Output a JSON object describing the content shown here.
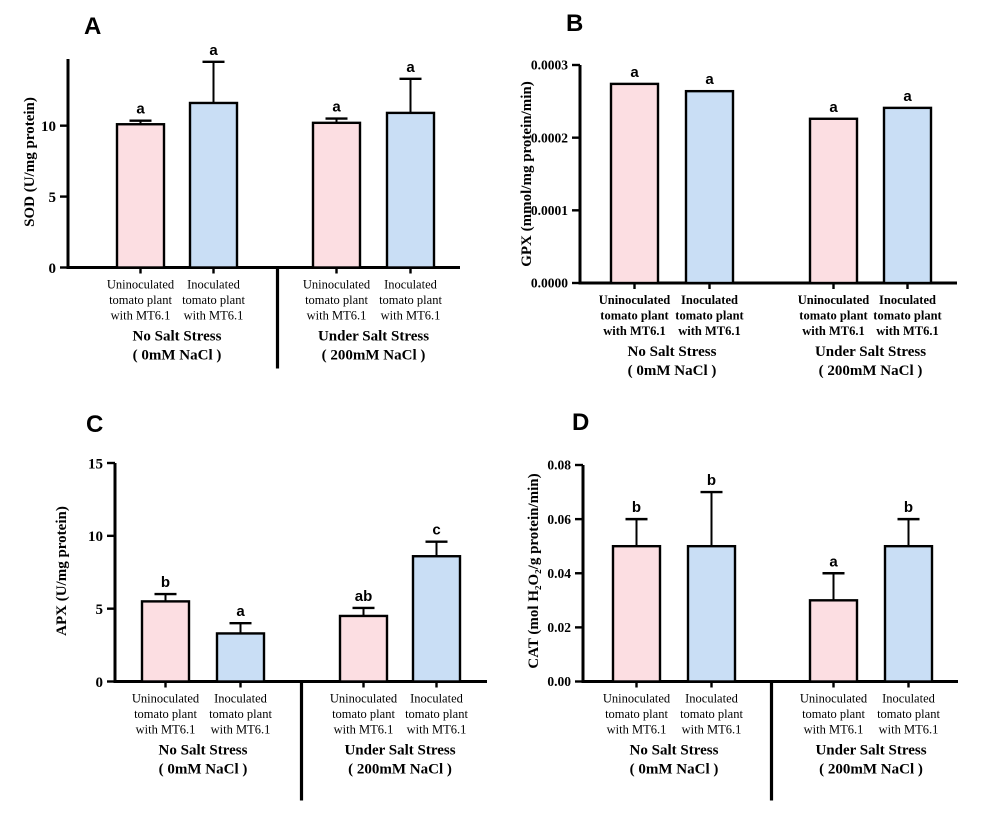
{
  "figure": {
    "background": "#ffffff",
    "axis_color": "#000000",
    "bar_fill_colors": {
      "uninoculated": "#fcdee2",
      "inoculated": "#c9def5"
    },
    "category_label_lines": [
      [
        "Uninoculated",
        "tomato plant",
        "with MT6.1"
      ],
      [
        "Inoculated",
        "tomato plant",
        "with MT6.1"
      ]
    ],
    "group_label_lines": [
      [
        "No Salt Stress",
        "( 0mM NaCl )"
      ],
      [
        "Under Salt Stress",
        "( 200mM NaCl )"
      ]
    ]
  },
  "chart_data": [
    {
      "panel_label": "A",
      "type": "bar",
      "title": "",
      "xlabel": "",
      "ylabel": "SOD (U/mg protein)",
      "ylim": [
        0,
        14.7
      ],
      "ytick_values": [
        0,
        5,
        10
      ],
      "ytick_labels": [
        "0",
        "5",
        "10"
      ],
      "categories": [
        "Uninoculated tomato plant with MT6.1",
        "Inoculated tomato plant with MT6.1",
        "Uninoculated tomato plant with MT6.1",
        "Inoculated tomato plant with MT6.1"
      ],
      "groups": [
        "No Salt Stress ( 0mM NaCl )",
        "Under Salt Stress ( 200mM NaCl )"
      ],
      "values": [
        10.1,
        11.6,
        10.2,
        10.9
      ],
      "errors_up": [
        0.25,
        2.9,
        0.3,
        2.4
      ],
      "significance_letters": [
        "a",
        "a",
        "a",
        "a"
      ],
      "group_divider": true,
      "bold_category_labels": false,
      "grid": false,
      "legend": "none"
    },
    {
      "panel_label": "B",
      "type": "bar",
      "title": "",
      "xlabel": "",
      "ylabel": "GPX (mmol/mg protein/min)",
      "ylim": [
        0,
        0.0003
      ],
      "ytick_values": [
        0,
        0.0001,
        0.0002,
        0.0003
      ],
      "ytick_labels": [
        "0.0000",
        "0.0001",
        "0.0002",
        "0.0003"
      ],
      "categories": [
        "Uninoculated tomato plant with MT6.1",
        "Inoculated tomato plant with MT6.1",
        "Uninoculated tomato plant with MT6.1",
        "Inoculated tomato plant with MT6.1"
      ],
      "groups": [
        "No Salt Stress ( 0mM NaCl )",
        "Under Salt Stress ( 200mM NaCl )"
      ],
      "values": [
        0.000274,
        0.000264,
        0.000226,
        0.000241
      ],
      "errors_up": [
        0,
        0,
        0,
        0
      ],
      "significance_letters": [
        "a",
        "a",
        "a",
        "a"
      ],
      "group_divider": false,
      "bold_category_labels": true,
      "grid": false,
      "legend": "none"
    },
    {
      "panel_label": "C",
      "type": "bar",
      "title": "",
      "xlabel": "",
      "ylabel": "APX (U/mg protein)",
      "ylim": [
        0,
        15
      ],
      "ytick_values": [
        0,
        5,
        10,
        15
      ],
      "ytick_labels": [
        "0",
        "5",
        "10",
        "15"
      ],
      "categories": [
        "Uninoculated tomato plant with MT6.1",
        "Inoculated tomato plant with MT6.1",
        "Uninoculated tomato plant with MT6.1",
        "Inoculated tomato plant with MT6.1"
      ],
      "groups": [
        "No Salt Stress ( 0mM NaCl )",
        "Under Salt Stress ( 200mM NaCl )"
      ],
      "values": [
        5.5,
        3.3,
        4.5,
        8.6
      ],
      "errors_up": [
        0.5,
        0.7,
        0.55,
        1.0
      ],
      "significance_letters": [
        "b",
        "a",
        "ab",
        "c"
      ],
      "group_divider": true,
      "bold_category_labels": false,
      "grid": false,
      "legend": "none"
    },
    {
      "panel_label": "D",
      "type": "bar",
      "title": "",
      "xlabel": "",
      "ylabel": "CAT (mol H₂O₂/g protein/min)",
      "ylim": [
        0,
        0.08
      ],
      "ytick_values": [
        0,
        0.02,
        0.04,
        0.06,
        0.08
      ],
      "ytick_labels": [
        "0.00",
        "0.02",
        "0.04",
        "0.06",
        "0.08"
      ],
      "categories": [
        "Uninoculated tomato plant with MT6.1",
        "Inoculated tomato plant with MT6.1",
        "Uninoculated tomato plant with MT6.1",
        "Inoculated tomato plant with MT6.1"
      ],
      "groups": [
        "No Salt Stress ( 0mM NaCl )",
        "Under Salt Stress ( 200mM NaCl )"
      ],
      "values": [
        0.05,
        0.05,
        0.03,
        0.05
      ],
      "errors_up": [
        0.01,
        0.02,
        0.01,
        0.01
      ],
      "significance_letters": [
        "b",
        "b",
        "a",
        "b"
      ],
      "group_divider": true,
      "bold_category_labels": false,
      "grid": false,
      "legend": "none"
    }
  ]
}
